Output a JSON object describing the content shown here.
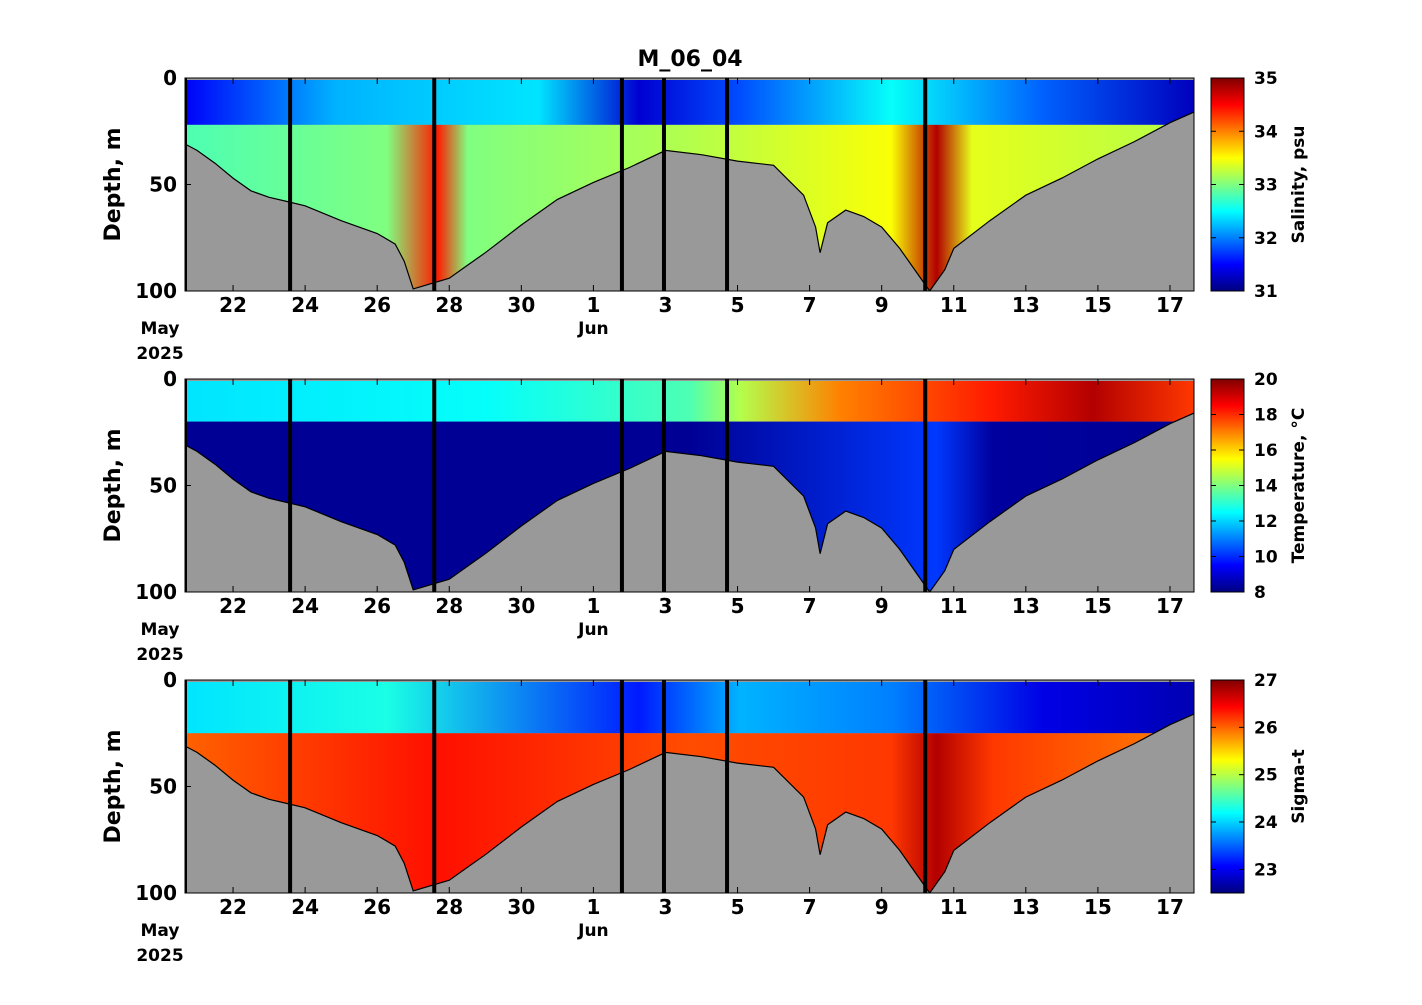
{
  "figure": {
    "title": "M_06_04"
  },
  "chart_data": [
    {
      "type": "heatmap",
      "ylabel": "Depth, m",
      "colorbar_label": "Salinity, psu",
      "colorbar_range": [
        31,
        35
      ],
      "colorbar_ticks": [
        "31",
        "32",
        "33",
        "34",
        "35"
      ],
      "ylim": [
        0,
        100
      ],
      "y_ticks": [
        "0",
        "50",
        "100"
      ],
      "x_tick_labels": [
        "22",
        "24",
        "26",
        "28",
        "30",
        "1",
        "3",
        "5",
        "7",
        "9",
        "11",
        "13",
        "15",
        "17"
      ],
      "x_month_labels": [
        "May",
        "Jun"
      ],
      "x_year_label": "2025",
      "colormap": "jet",
      "missing_color": "#999999"
    },
    {
      "type": "heatmap",
      "ylabel": "Depth, m",
      "colorbar_label": "Temperature, °C",
      "colorbar_range": [
        8,
        20
      ],
      "colorbar_ticks": [
        "8",
        "10",
        "12",
        "14",
        "16",
        "18",
        "20"
      ],
      "ylim": [
        0,
        100
      ],
      "y_ticks": [
        "0",
        "50",
        "100"
      ],
      "x_tick_labels": [
        "22",
        "24",
        "26",
        "28",
        "30",
        "1",
        "3",
        "5",
        "7",
        "9",
        "11",
        "13",
        "15",
        "17"
      ],
      "x_month_labels": [
        "May",
        "Jun"
      ],
      "x_year_label": "2025",
      "colormap": "jet",
      "missing_color": "#999999"
    },
    {
      "type": "heatmap",
      "ylabel": "Depth, m",
      "colorbar_label": "Sigma-t",
      "colorbar_range": [
        22.5,
        27
      ],
      "colorbar_ticks": [
        "23",
        "24",
        "25",
        "26",
        "27"
      ],
      "ylim": [
        0,
        100
      ],
      "y_ticks": [
        "0",
        "50",
        "100"
      ],
      "x_tick_labels": [
        "22",
        "24",
        "26",
        "28",
        "30",
        "1",
        "3",
        "5",
        "7",
        "9",
        "11",
        "13",
        "15",
        "17"
      ],
      "x_month_labels": [
        "May",
        "Jun"
      ],
      "x_year_label": "2025",
      "colormap": "jet",
      "missing_color": "#999999"
    }
  ],
  "shared": {
    "x_start_date": "2025-05-20T16:00",
    "x_end_date": "2025-06-17T16:00",
    "tick_dates": [
      "2025-05-22",
      "2025-05-24",
      "2025-05-26",
      "2025-05-28",
      "2025-05-30",
      "2025-06-01",
      "2025-06-03",
      "2025-06-05",
      "2025-06-07",
      "2025-06-09",
      "2025-06-11",
      "2025-06-13",
      "2025-06-15",
      "2025-06-17"
    ],
    "month_label_dates": [
      "2025-05-20T16:00",
      "2025-06-01"
    ],
    "vertical_line_dates": [
      "2025-05-20T16:00",
      "2025-05-23T14:00",
      "2025-05-27T14:00",
      "2025-06-01T19:00",
      "2025-06-02T23:00",
      "2025-06-04T17:00",
      "2025-06-10T05:00"
    ],
    "bottom_depth_profile": {
      "dates": [
        "2025-05-20T16:00",
        "2025-05-21T00:00",
        "2025-05-21T12:00",
        "2025-05-22T00:00",
        "2025-05-22T12:00",
        "2025-05-23T00:00",
        "2025-05-23T12:00",
        "2025-05-24T00:00",
        "2025-05-25T00:00",
        "2025-05-26T00:00",
        "2025-05-26T12:00",
        "2025-05-26T18:00",
        "2025-05-27T00:00",
        "2025-05-28T00:00",
        "2025-05-28T12:00",
        "2025-05-29T00:00",
        "2025-05-30T00:00",
        "2025-05-31T00:00",
        "2025-06-01T00:00",
        "2025-06-02T00:00",
        "2025-06-03T00:00",
        "2025-06-04T00:00",
        "2025-06-05T00:00",
        "2025-06-06T00:00",
        "2025-06-06T20:00",
        "2025-06-07T04:00",
        "2025-06-07T07:00",
        "2025-06-07T12:00",
        "2025-06-08T00:00",
        "2025-06-08T12:00",
        "2025-06-09T00:00",
        "2025-06-09T12:00",
        "2025-06-10T00:00",
        "2025-06-10T08:00",
        "2025-06-10T18:00",
        "2025-06-11T00:00",
        "2025-06-12T00:00",
        "2025-06-13T00:00",
        "2025-06-14T00:00",
        "2025-06-15T00:00",
        "2025-06-16T00:00",
        "2025-06-17T00:00",
        "2025-06-17T16:00"
      ],
      "depths": [
        31,
        34,
        40,
        47,
        53,
        56,
        58,
        60,
        67,
        73,
        78,
        86,
        99,
        94,
        88,
        82,
        69,
        57,
        49,
        42,
        34,
        36,
        39,
        41,
        55,
        70,
        82,
        68,
        62,
        65,
        70,
        80,
        92,
        100,
        90,
        80,
        67,
        55,
        47,
        38,
        30,
        21,
        16
      ]
    }
  }
}
